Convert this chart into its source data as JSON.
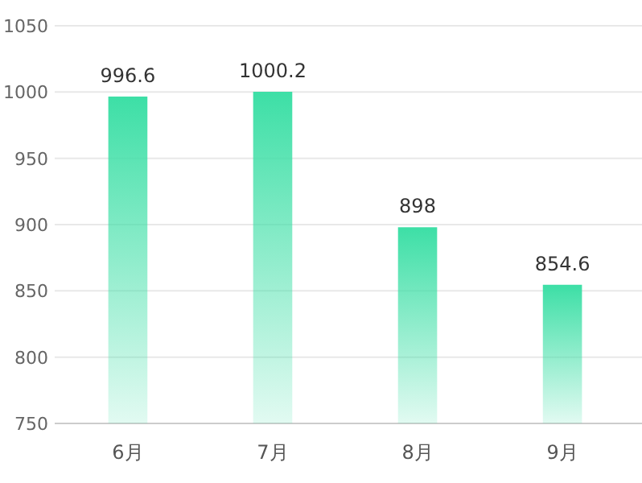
{
  "chart_data": {
    "type": "bar",
    "categories": [
      "6月",
      "7月",
      "8月",
      "9月"
    ],
    "values": [
      996.6,
      1000.2,
      898,
      854.6
    ],
    "color": "#3ddfa6",
    "data_labels": true,
    "ylim": [
      750,
      1050
    ],
    "yticks": [
      750,
      800,
      850,
      900,
      950,
      1000,
      1050
    ],
    "grid": "y"
  }
}
